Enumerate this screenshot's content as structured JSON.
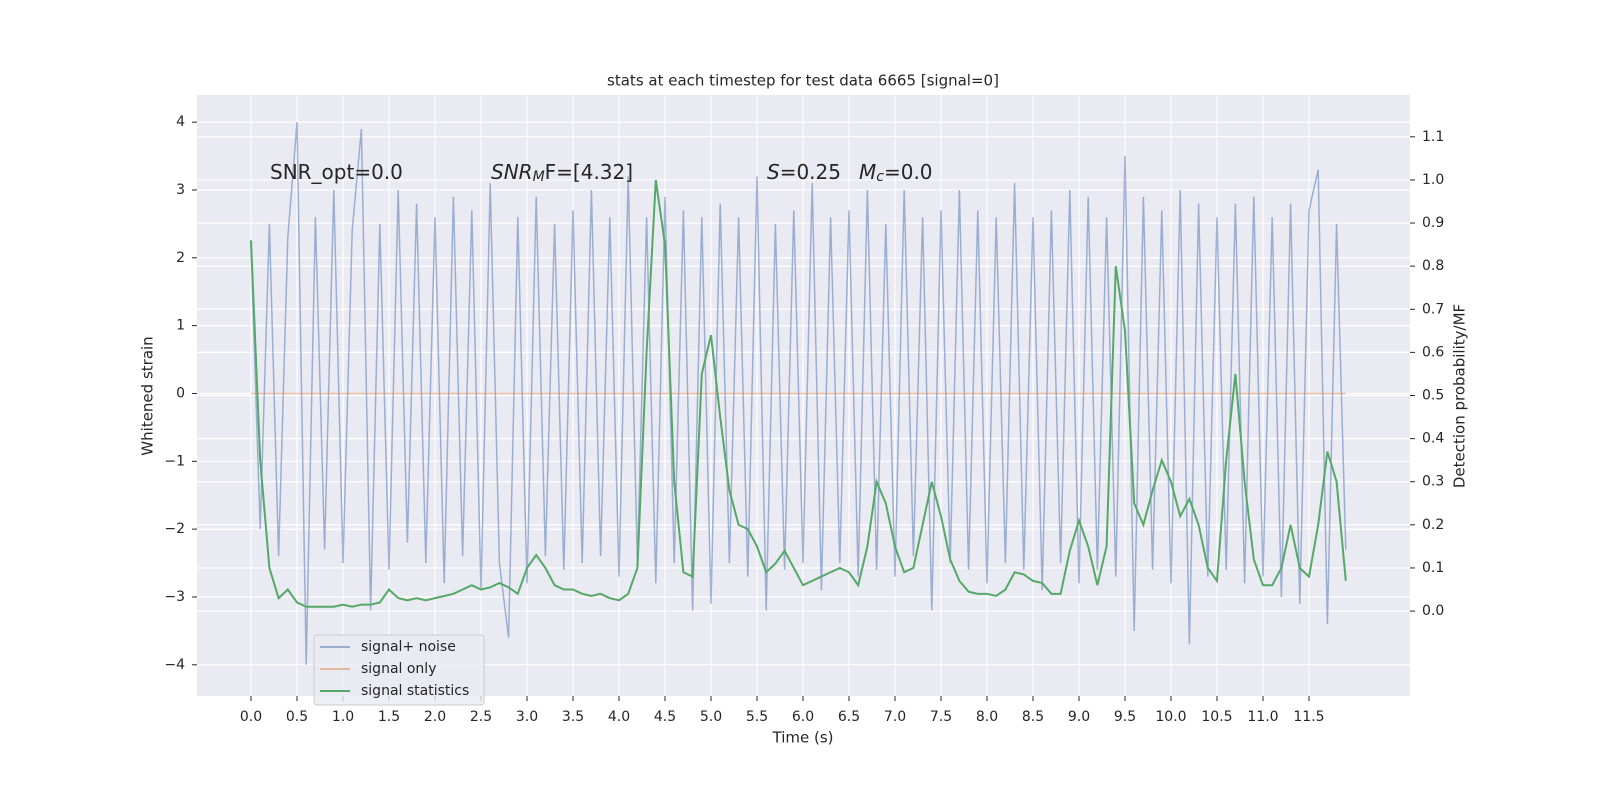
{
  "chart_data": {
    "type": "line",
    "title": "stats at each timestep for test data 6665 [signal=0]",
    "xlabel": "Time (s)",
    "ylabel": "Whitened strain",
    "y2label": "Detection probability/MF",
    "annotations": [
      [
        {
          "text": "SNR_opt=0.0"
        }
      ],
      [
        {
          "text": "SNR",
          "style": "italic"
        },
        {
          "text": "M",
          "style": "italic-sub"
        },
        {
          "text": "F=[4.32]"
        }
      ],
      [
        {
          "text": "S",
          "style": "italic"
        },
        {
          "text": "=0.25"
        }
      ],
      [
        {
          "text": "M",
          "style": "italic"
        },
        {
          "text": "c",
          "style": "italic-sub"
        },
        {
          "text": "=0.0"
        }
      ]
    ],
    "x": [
      0.0,
      0.1,
      0.2,
      0.3,
      0.4,
      0.5,
      0.6,
      0.7,
      0.8,
      0.9,
      1.0,
      1.1,
      1.2,
      1.3,
      1.4,
      1.5,
      1.6,
      1.7,
      1.8,
      1.9,
      2.0,
      2.1,
      2.2,
      2.3,
      2.4,
      2.5,
      2.6,
      2.7,
      2.8,
      2.9,
      3.0,
      3.1,
      3.2,
      3.3,
      3.4,
      3.5,
      3.6,
      3.7,
      3.8,
      3.9,
      4.0,
      4.1,
      4.2,
      4.3,
      4.4,
      4.5,
      4.6,
      4.7,
      4.8,
      4.9,
      5.0,
      5.1,
      5.2,
      5.3,
      5.4,
      5.5,
      5.6,
      5.7,
      5.8,
      5.9,
      6.0,
      6.1,
      6.2,
      6.3,
      6.4,
      6.5,
      6.6,
      6.7,
      6.8,
      6.9,
      7.0,
      7.1,
      7.2,
      7.3,
      7.4,
      7.5,
      7.6,
      7.7,
      7.8,
      7.9,
      8.0,
      8.1,
      8.2,
      8.3,
      8.4,
      8.5,
      8.6,
      8.7,
      8.8,
      8.9,
      9.0,
      9.1,
      9.2,
      9.3,
      9.4,
      9.5,
      9.6,
      9.7,
      9.8,
      9.9,
      10.0,
      10.1,
      10.2,
      10.3,
      10.4,
      10.5,
      10.6,
      10.7,
      10.8,
      10.9,
      11.0,
      11.1,
      11.2,
      11.3,
      11.4,
      11.5,
      11.6,
      11.7,
      11.8,
      11.9
    ],
    "series": [
      {
        "name": "signal+ noise",
        "color": "#4c72b0",
        "opacity": 0.5,
        "axis": "y",
        "values": [
          2.2,
          -2.0,
          2.5,
          -2.4,
          2.3,
          4.0,
          -4.0,
          2.6,
          -2.3,
          3.0,
          -2.5,
          2.4,
          3.9,
          -3.2,
          2.5,
          -2.6,
          3.0,
          -2.2,
          2.8,
          -2.5,
          2.6,
          -2.8,
          2.9,
          -2.4,
          2.7,
          -2.9,
          3.1,
          -2.5,
          -3.6,
          2.6,
          -2.8,
          2.9,
          -2.4,
          2.5,
          -2.6,
          2.7,
          -2.5,
          3.0,
          -2.4,
          2.6,
          -2.7,
          3.2,
          -2.5,
          2.6,
          -2.8,
          2.9,
          -2.5,
          2.7,
          -3.2,
          2.6,
          -3.1,
          2.8,
          -2.5,
          2.6,
          -2.7,
          3.2,
          -3.2,
          2.5,
          -2.6,
          2.7,
          -2.5,
          3.1,
          -2.9,
          2.6,
          -2.5,
          2.7,
          -2.7,
          3.0,
          -2.6,
          2.5,
          -2.7,
          3.0,
          -2.4,
          2.6,
          -3.2,
          2.7,
          -2.5,
          3.0,
          -2.6,
          2.7,
          -2.8,
          2.6,
          -2.5,
          3.1,
          -2.6,
          2.6,
          -2.9,
          2.7,
          -2.5,
          3.0,
          -2.8,
          2.9,
          -2.6,
          2.6,
          -2.7,
          3.5,
          -3.5,
          2.9,
          -2.6,
          2.7,
          -2.8,
          3.0,
          -3.7,
          2.8,
          -2.7,
          2.6,
          -2.6,
          2.8,
          -2.8,
          2.9,
          -2.7,
          2.6,
          -3.0,
          2.8,
          -3.1,
          2.7,
          3.3,
          -3.4,
          2.5,
          -2.3
        ]
      },
      {
        "name": "signal only",
        "color": "#dd8452",
        "opacity": 0.5,
        "axis": "y",
        "values": [
          0,
          0,
          0,
          0,
          0,
          0,
          0,
          0,
          0,
          0,
          0,
          0,
          0,
          0,
          0,
          0,
          0,
          0,
          0,
          0,
          0,
          0,
          0,
          0,
          0,
          0,
          0,
          0,
          0,
          0,
          0,
          0,
          0,
          0,
          0,
          0,
          0,
          0,
          0,
          0,
          0,
          0,
          0,
          0,
          0,
          0,
          0,
          0,
          0,
          0,
          0,
          0,
          0,
          0,
          0,
          0,
          0,
          0,
          0,
          0,
          0,
          0,
          0,
          0,
          0,
          0,
          0,
          0,
          0,
          0,
          0,
          0,
          0,
          0,
          0,
          0,
          0,
          0,
          0,
          0,
          0,
          0,
          0,
          0,
          0,
          0,
          0,
          0,
          0,
          0,
          0,
          0,
          0,
          0,
          0,
          0,
          0,
          0,
          0,
          0,
          0,
          0,
          0,
          0,
          0,
          0,
          0,
          0,
          0,
          0,
          0,
          0,
          0,
          0,
          0,
          0,
          0,
          0,
          0,
          0
        ]
      },
      {
        "name": "signal statistics",
        "color": "#55a868",
        "opacity": 1,
        "axis": "y2",
        "values": [
          0.86,
          0.35,
          0.1,
          0.03,
          0.05,
          0.02,
          0.01,
          0.01,
          0.01,
          0.01,
          0.015,
          0.01,
          0.015,
          0.015,
          0.02,
          0.05,
          0.03,
          0.025,
          0.03,
          0.025,
          0.03,
          0.035,
          0.04,
          0.05,
          0.06,
          0.05,
          0.055,
          0.065,
          0.055,
          0.04,
          0.1,
          0.13,
          0.1,
          0.06,
          0.05,
          0.05,
          0.04,
          0.035,
          0.04,
          0.03,
          0.025,
          0.04,
          0.1,
          0.6,
          1.0,
          0.85,
          0.3,
          0.09,
          0.08,
          0.55,
          0.64,
          0.45,
          0.28,
          0.2,
          0.19,
          0.15,
          0.09,
          0.11,
          0.14,
          0.1,
          0.06,
          0.07,
          0.08,
          0.09,
          0.1,
          0.09,
          0.06,
          0.15,
          0.3,
          0.25,
          0.15,
          0.09,
          0.1,
          0.2,
          0.3,
          0.22,
          0.12,
          0.07,
          0.045,
          0.04,
          0.04,
          0.035,
          0.05,
          0.09,
          0.085,
          0.07,
          0.065,
          0.04,
          0.04,
          0.14,
          0.21,
          0.15,
          0.06,
          0.15,
          0.8,
          0.65,
          0.25,
          0.2,
          0.28,
          0.35,
          0.3,
          0.22,
          0.26,
          0.2,
          0.1,
          0.07,
          0.35,
          0.55,
          0.3,
          0.12,
          0.06,
          0.06,
          0.1,
          0.2,
          0.1,
          0.08,
          0.2,
          0.37,
          0.3,
          0.07
        ]
      }
    ],
    "xlim": [
      -0.587,
      12.598
    ],
    "xticks": [
      {
        "value": 0,
        "label": "0.0"
      },
      0.5,
      {
        "value": 1,
        "label": "1.0"
      },
      1.5,
      {
        "value": 2,
        "label": "2.0"
      },
      2.5,
      {
        "value": 3,
        "label": "3.0"
      },
      3.5,
      {
        "value": 4,
        "label": "4.0"
      },
      4.5,
      {
        "value": 5,
        "label": "5.0"
      },
      5.5,
      {
        "value": 6,
        "label": "6.0"
      },
      6.5,
      {
        "value": 7,
        "label": "7.0"
      },
      7.5,
      {
        "value": 8,
        "label": "8.0"
      },
      8.5,
      {
        "value": 9,
        "label": "9.0"
      },
      9.5,
      {
        "value": 10,
        "label": "10.0"
      },
      10.5,
      {
        "value": 11,
        "label": "11.0"
      },
      11.5
    ],
    "ylim": [
      -4.46,
      4.4
    ],
    "yticks": [
      {
        "value": -4,
        "label": "−4"
      },
      {
        "value": -3,
        "label": "−3"
      },
      {
        "value": -2,
        "label": "−2"
      },
      {
        "value": -1,
        "label": "−1"
      },
      0,
      1,
      2,
      3,
      4
    ],
    "y2lim": [
      -0.197,
      1.197
    ],
    "y2ticks": [
      {
        "value": 0,
        "label": "0.0"
      },
      0.1,
      0.2,
      0.3,
      0.4,
      0.5,
      0.6,
      0.7,
      0.8,
      0.9,
      {
        "value": 1,
        "label": "1.0"
      },
      1.1
    ],
    "grid": true,
    "legend": "lower left"
  }
}
